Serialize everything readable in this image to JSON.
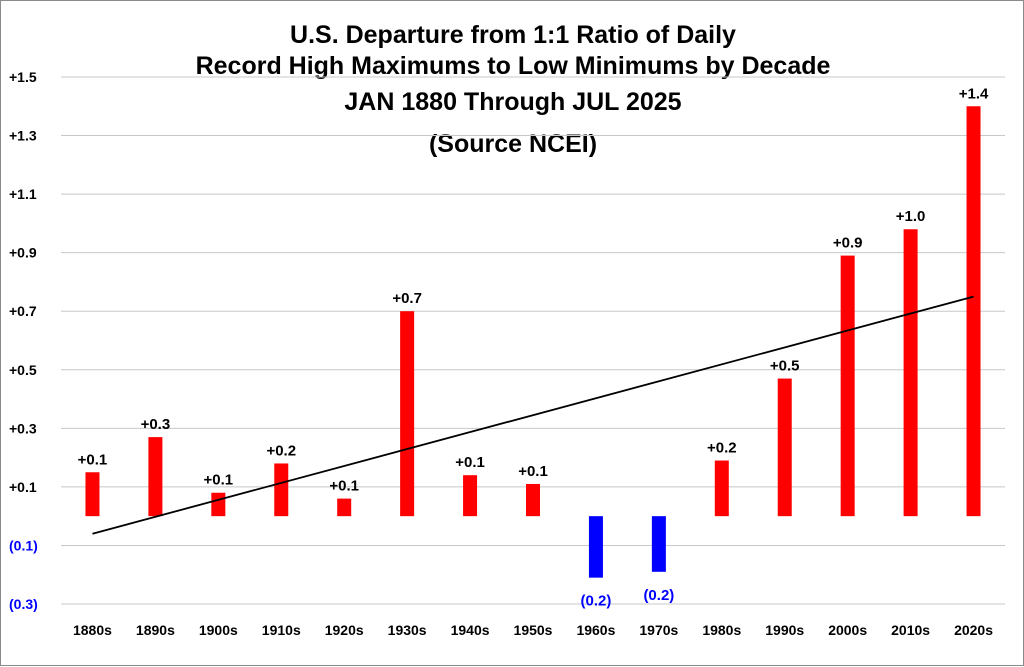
{
  "chart_data": {
    "type": "bar",
    "title_lines": [
      "U.S. Departure from 1:1 Ratio of Daily",
      "Record High Maximums to Low Minimums by Decade",
      "JAN 1880 Through JUL 2025",
      "(Source NCEI)"
    ],
    "categories": [
      "1880s",
      "1890s",
      "1900s",
      "1910s",
      "1920s",
      "1930s",
      "1940s",
      "1950s",
      "1960s",
      "1970s",
      "1980s",
      "1990s",
      "2000s",
      "2010s",
      "2020s"
    ],
    "values": [
      0.15,
      0.27,
      0.08,
      0.18,
      0.06,
      0.7,
      0.14,
      0.11,
      -0.21,
      -0.19,
      0.19,
      0.47,
      0.89,
      0.98,
      1.4
    ],
    "data_labels": [
      "+0.1",
      "+0.3",
      "+0.1",
      "+0.2",
      "+0.1",
      "+0.7",
      "+0.1",
      "+0.1",
      "(0.2)",
      "(0.2)",
      "+0.2",
      "+0.5",
      "+0.9",
      "+1.0",
      "+1.4"
    ],
    "ylim": [
      -0.3,
      1.5
    ],
    "y_ticks": [
      1.5,
      1.3,
      1.1,
      0.9,
      0.7,
      0.5,
      0.3,
      0.1,
      -0.1,
      -0.3
    ],
    "y_tick_labels": [
      "+1.5",
      "+1.3",
      "+1.1",
      "+0.9",
      "+0.7",
      "+0.5",
      "+0.3",
      "+0.1",
      "(0.1)",
      "(0.3)"
    ],
    "trendline": {
      "start": -0.06,
      "end": 0.75
    },
    "grid": true,
    "legend": "none",
    "colors": {
      "positive": "#ff0000",
      "negative": "#0000ff",
      "grid": "#c8c8c8",
      "trend": "#000000"
    }
  }
}
